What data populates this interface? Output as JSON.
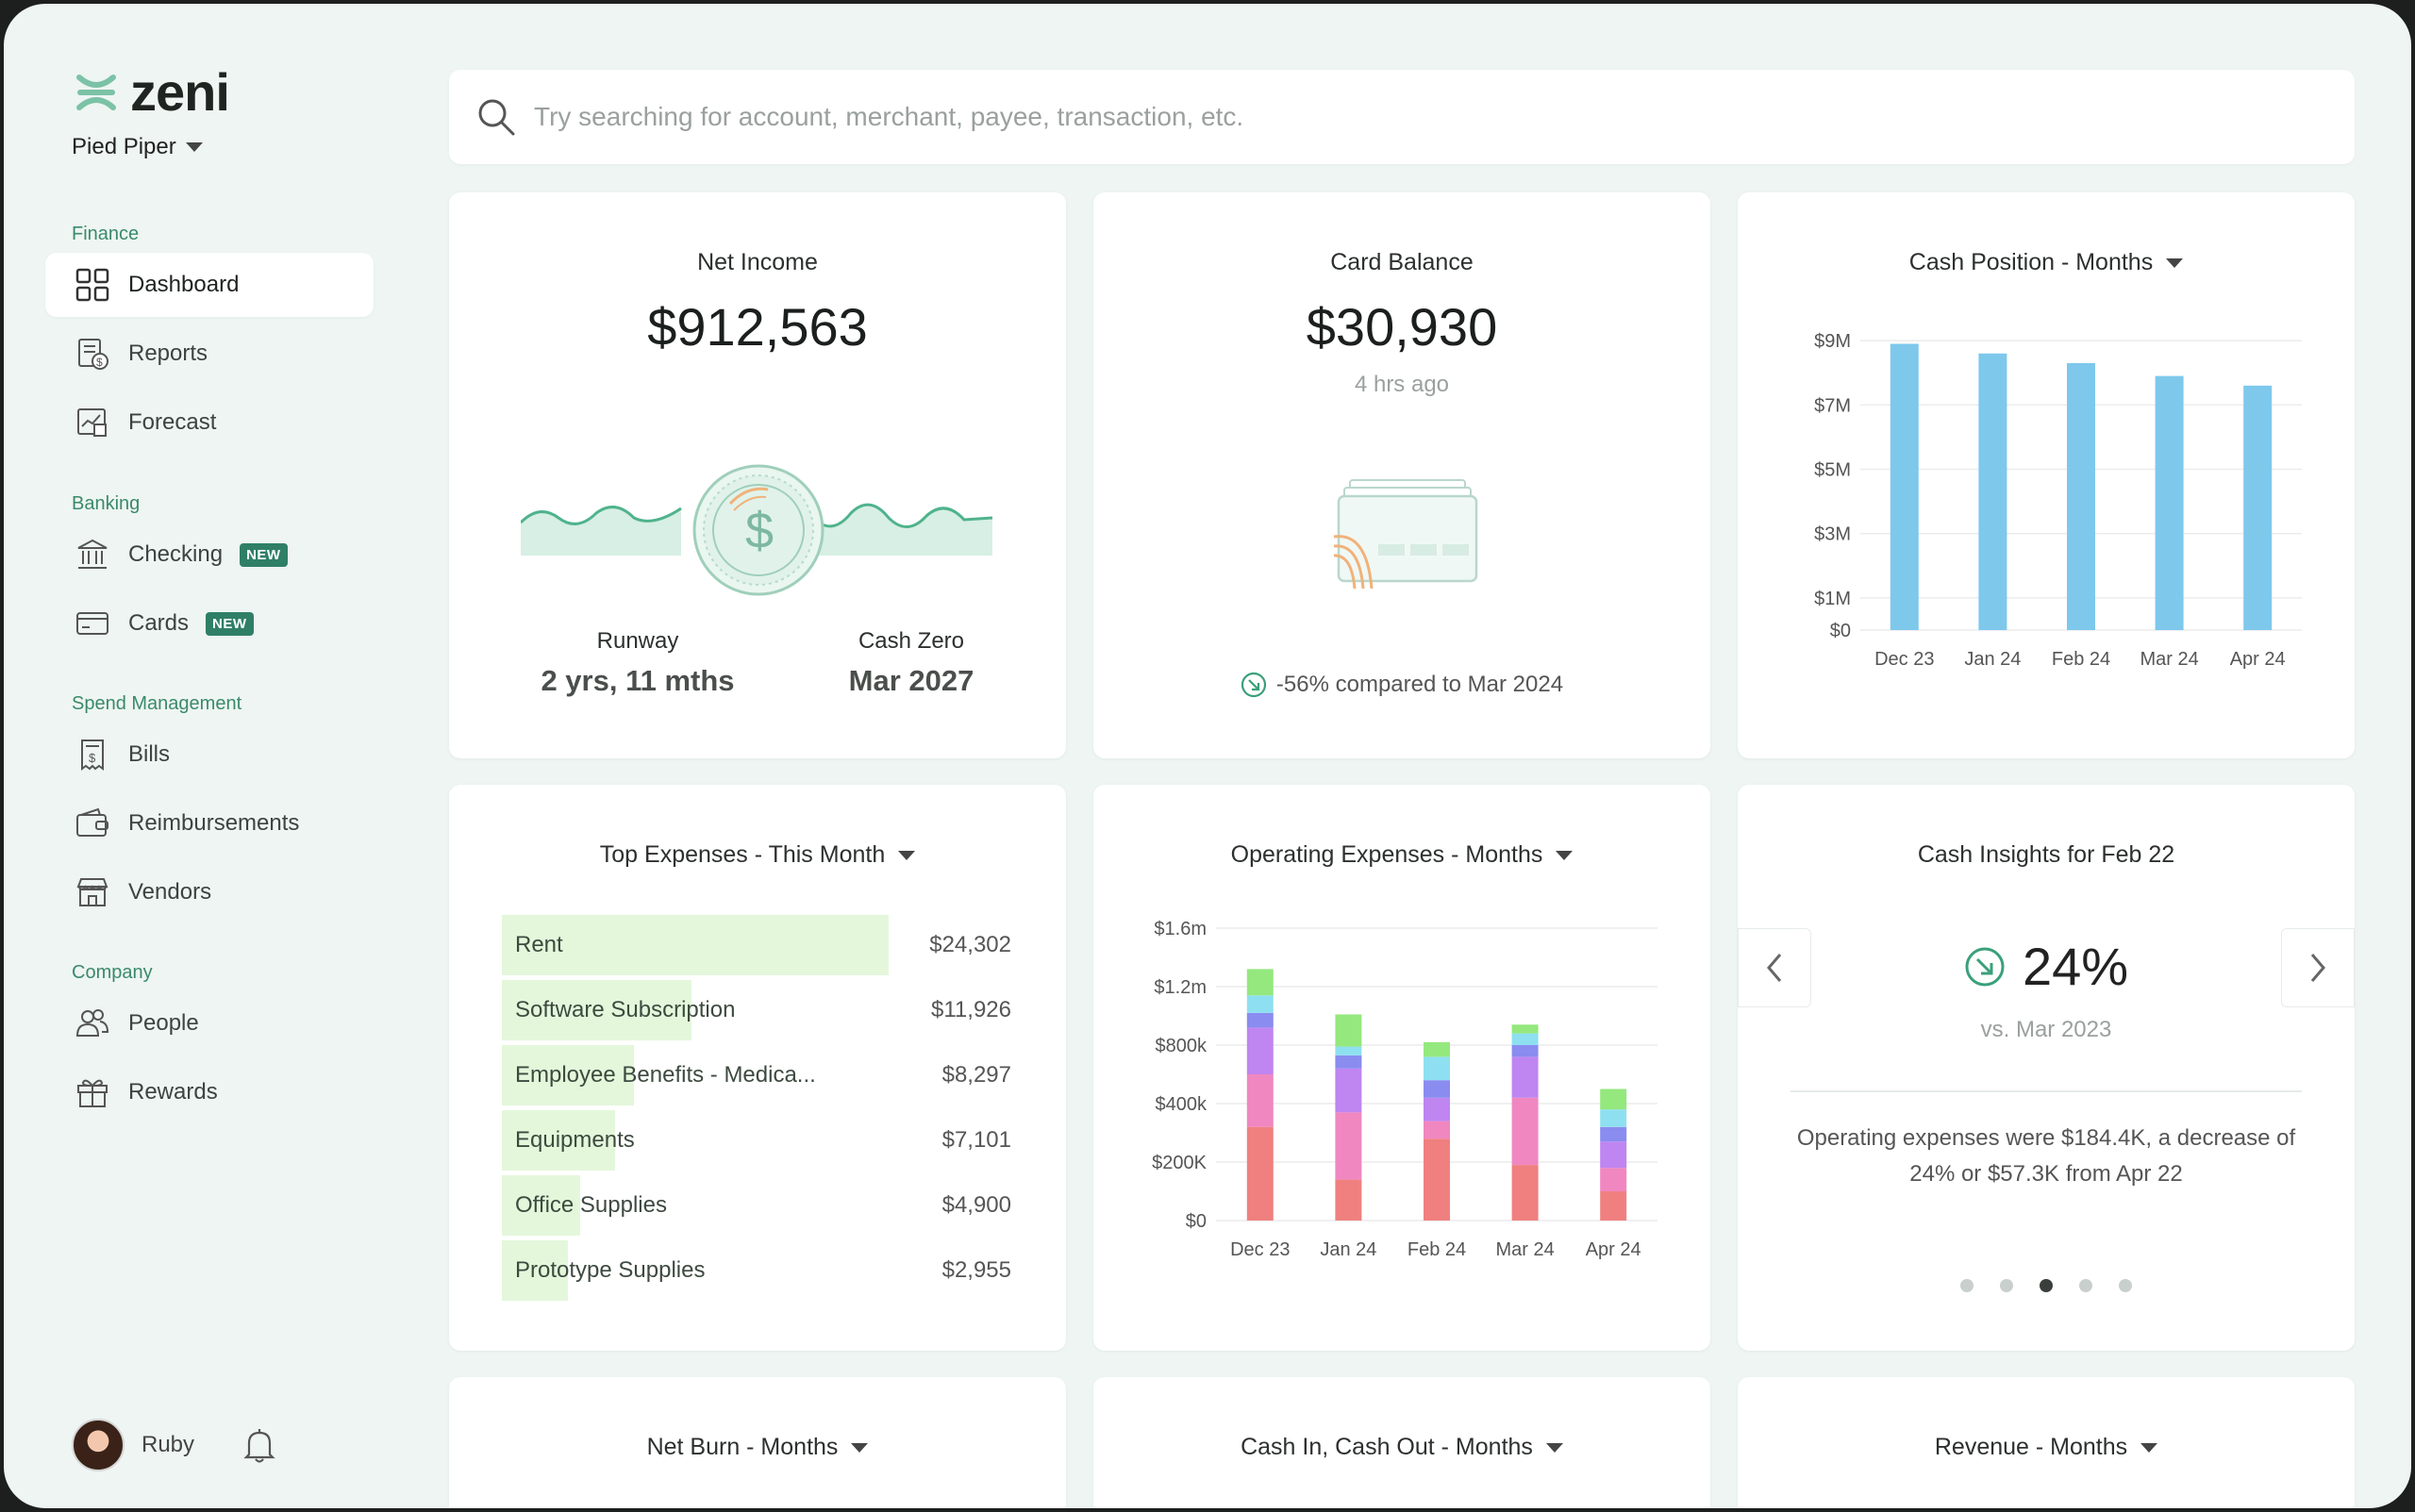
{
  "brand": {
    "name": "zeni",
    "company": "Pied Piper"
  },
  "sidebar": {
    "sections": [
      {
        "label": "Finance"
      },
      {
        "label": "Banking"
      },
      {
        "label": "Spend Management"
      },
      {
        "label": "Company"
      }
    ],
    "items": [
      {
        "label": "Dashboard",
        "icon": "dashboard-icon",
        "active": true
      },
      {
        "label": "Reports",
        "icon": "reports-icon"
      },
      {
        "label": "Forecast",
        "icon": "forecast-icon"
      },
      {
        "label": "Checking",
        "icon": "bank-icon",
        "badge": "NEW"
      },
      {
        "label": "Cards",
        "icon": "card-icon",
        "badge": "NEW"
      },
      {
        "label": "Bills",
        "icon": "bill-icon"
      },
      {
        "label": "Reimbursements",
        "icon": "wallet-icon"
      },
      {
        "label": "Vendors",
        "icon": "store-icon"
      },
      {
        "label": "People",
        "icon": "people-icon"
      },
      {
        "label": "Rewards",
        "icon": "gift-icon"
      }
    ],
    "user": {
      "name": "Ruby"
    }
  },
  "search": {
    "placeholder": "Try searching for account, merchant, payee, transaction, etc."
  },
  "net_income": {
    "title": "Net Income",
    "value": "$912,563",
    "runway_label": "Runway",
    "runway_value": "2 yrs, 11 mths",
    "cash_zero_label": "Cash Zero",
    "cash_zero_value": "Mar 2027"
  },
  "card_balance": {
    "title": "Card Balance",
    "value": "$30,930",
    "updated": "4 hrs ago",
    "comparison": "-56% compared to Mar 2024"
  },
  "cash_position": {
    "title": "Cash Position - Months"
  },
  "top_expenses": {
    "title": "Top Expenses - This Month",
    "items": [
      {
        "name": "Rent",
        "value": "$24,302",
        "amount": 24302
      },
      {
        "name": "Software Subscription",
        "value": "$11,926",
        "amount": 11926
      },
      {
        "name": "Employee Benefits - Medica...",
        "value": "$8,297",
        "amount": 8297
      },
      {
        "name": "Equipments",
        "value": "$7,101",
        "amount": 7101
      },
      {
        "name": "Office Supplies",
        "value": "$4,900",
        "amount": 4900
      },
      {
        "name": "Prototype Supplies",
        "value": "$2,955",
        "amount": 2955
      }
    ]
  },
  "operating_expenses": {
    "title": "Operating Expenses - Months"
  },
  "cash_insights": {
    "title": "Cash Insights for Feb 22",
    "percent": "24%",
    "versus": "vs. Mar 2023",
    "description": "Operating expenses were $184.4K, a decrease of 24% or $57.3K from Apr 22",
    "pages": 5,
    "current_page": 3
  },
  "bottom_cards": [
    {
      "title": "Net Burn - Months"
    },
    {
      "title": "Cash In, Cash Out - Months"
    },
    {
      "title": "Revenue - Months"
    }
  ],
  "chart_data": [
    {
      "type": "bar",
      "title": "Cash Position - Months",
      "categories": [
        "Dec 23",
        "Jan 24",
        "Feb 24",
        "Mar 24",
        "Apr 24"
      ],
      "values": [
        8.9,
        8.6,
        8.3,
        7.9,
        7.6
      ],
      "y_unit": "millions USD",
      "y_ticks": [
        "$0",
        "$1M",
        "$3M",
        "$5M",
        "$7M",
        "$9M"
      ],
      "ylim": [
        0,
        10
      ],
      "color": "#7ec8ec",
      "grid": true
    },
    {
      "type": "bar",
      "stacked": true,
      "title": "Operating Expenses - Months",
      "categories": [
        "Dec 23",
        "Jan 24",
        "Feb 24",
        "Mar 24",
        "Apr 24"
      ],
      "y_ticks": [
        "$0",
        "$200K",
        "$400k",
        "$800k",
        "$1.2m",
        "$1.6m"
      ],
      "y_unit": "thousands USD",
      "ylim": [
        0,
        1600
      ],
      "grid": true,
      "series": [
        {
          "color": "#f08080",
          "values": [
            320,
            140,
            280,
            190,
            100
          ]
        },
        {
          "color": "#f087c0",
          "values": [
            180,
            230,
            60,
            230,
            80
          ]
        },
        {
          "color": "#bf85f0",
          "values": [
            160,
            150,
            80,
            140,
            90
          ]
        },
        {
          "color": "#8a8cf0",
          "values": [
            50,
            45,
            60,
            40,
            50
          ]
        },
        {
          "color": "#8ee0f0",
          "values": [
            60,
            30,
            80,
            40,
            60
          ]
        },
        {
          "color": "#94e87e",
          "values": [
            90,
            110,
            50,
            30,
            70
          ]
        }
      ]
    }
  ]
}
